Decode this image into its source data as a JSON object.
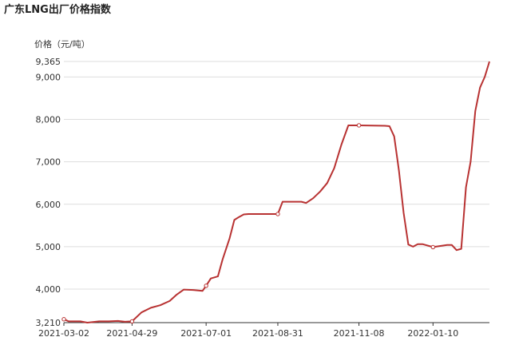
{
  "chart_data": {
    "type": "line",
    "title": "广东LNG出厂价格指数",
    "ylabel": "价格（元/吨）",
    "xlabel": "",
    "ylim": [
      3210,
      9365
    ],
    "yticks": [
      3210,
      4000,
      5000,
      6000,
      7000,
      8000,
      9000,
      9365
    ],
    "ytick_labels": [
      "3,210",
      "4,000",
      "5,000",
      "6,000",
      "7,000",
      "8,000",
      "9,000",
      "9,365"
    ],
    "xticks": [
      "2021-03-02",
      "2021-04-29",
      "2021-07-01",
      "2021-08-31",
      "2021-11-08",
      "2022-01-10"
    ],
    "grid": true,
    "colors": {
      "line": "#b83232",
      "grid": "#dddddd",
      "axis": "#333333"
    },
    "series": [
      {
        "x": [
          "2021-03-02",
          "2021-03-06",
          "2021-03-16",
          "2021-03-22",
          "2021-04-01",
          "2021-04-09",
          "2021-04-17",
          "2021-04-23",
          "2021-04-29",
          "2021-05-07",
          "2021-05-15",
          "2021-05-23",
          "2021-05-31",
          "2021-06-06",
          "2021-06-12",
          "2021-06-20",
          "2021-06-28",
          "2021-07-01",
          "2021-07-05",
          "2021-07-11",
          "2021-07-15",
          "2021-07-21",
          "2021-07-25",
          "2021-07-29",
          "2021-08-02",
          "2021-08-06",
          "2021-08-10",
          "2021-08-14",
          "2021-08-31",
          "2021-09-04",
          "2021-09-20",
          "2021-09-24",
          "2021-09-30",
          "2021-10-06",
          "2021-10-12",
          "2021-10-18",
          "2021-10-24",
          "2021-10-30",
          "2021-11-03",
          "2021-11-08",
          "2021-11-30",
          "2021-12-04",
          "2021-12-08",
          "2021-12-12",
          "2021-12-16",
          "2021-12-20",
          "2021-12-24",
          "2021-12-28",
          "2022-01-01",
          "2022-01-10",
          "2022-01-22",
          "2022-01-26",
          "2022-01-30",
          "2022-02-03",
          "2022-02-07",
          "2022-02-11",
          "2022-02-15",
          "2022-02-19",
          "2022-02-23",
          "2022-02-27"
        ],
        "values": [
          3290,
          3240,
          3240,
          3210,
          3240,
          3240,
          3250,
          3230,
          3240,
          3450,
          3560,
          3620,
          3720,
          3870,
          3990,
          3980,
          3960,
          4080,
          4250,
          4300,
          4700,
          5200,
          5630,
          5700,
          5760,
          5770,
          5770,
          5770,
          5770,
          6060,
          6060,
          6030,
          6140,
          6300,
          6500,
          6850,
          7400,
          7860,
          7860,
          7860,
          7850,
          7840,
          7600,
          6800,
          5800,
          5050,
          5000,
          5060,
          5060,
          4990,
          5040,
          5040,
          4920,
          4950,
          6400,
          7000,
          8200,
          8750,
          9000,
          9365
        ]
      }
    ],
    "markers": [
      {
        "x": "2021-03-02",
        "y": 3290
      },
      {
        "x": "2021-04-29",
        "y": 3240
      },
      {
        "x": "2021-07-01",
        "y": 4080
      },
      {
        "x": "2021-08-31",
        "y": 5770
      },
      {
        "x": "2021-11-08",
        "y": 7860
      },
      {
        "x": "2022-01-10",
        "y": 4990
      }
    ]
  }
}
